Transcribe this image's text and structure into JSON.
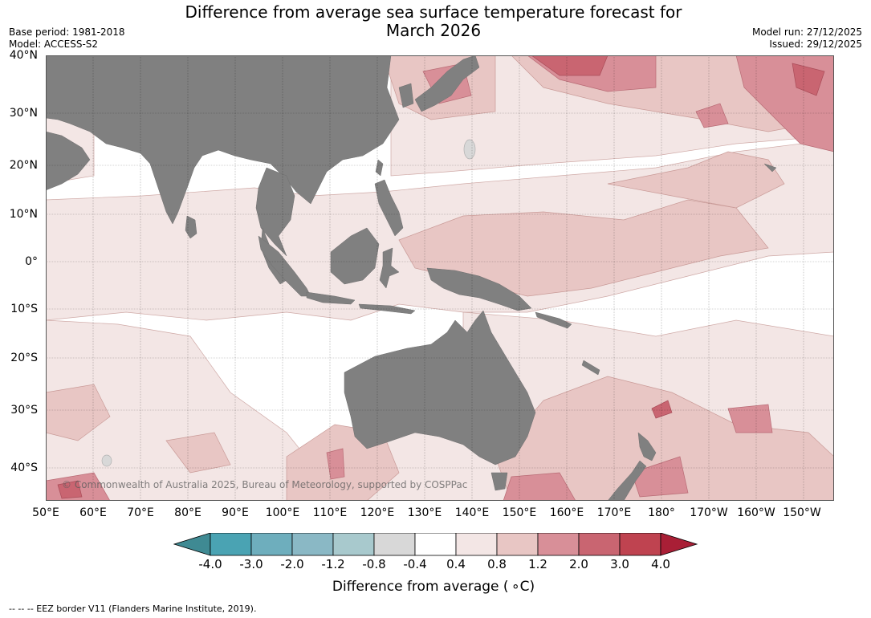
{
  "title": {
    "line1": "Difference from average sea surface temperature forecast for",
    "line2": "March 2026"
  },
  "meta": {
    "base_period": "Base period: 1981-2018",
    "model": "Model: ACCESS-S2",
    "model_run": "Model run: 27/12/2025",
    "issued": "Issued: 29/12/2025"
  },
  "axes": {
    "lat_labels": [
      "40°N",
      "30°N",
      "20°N",
      "10°N",
      "0°",
      "10°S",
      "20°S",
      "30°S",
      "40°S"
    ],
    "lon_labels": [
      "50°E",
      "60°E",
      "70°E",
      "80°E",
      "90°E",
      "100°E",
      "110°E",
      "120°E",
      "130°E",
      "140°E",
      "150°E",
      "160°E",
      "170°E",
      "180°",
      "170°W",
      "160°W",
      "150°W"
    ]
  },
  "colorbar": {
    "ticks": [
      "-4.0",
      "-3.0",
      "-2.0",
      "-1.2",
      "-0.8",
      "-0.4",
      "0.4",
      "0.8",
      "1.2",
      "2.0",
      "3.0",
      "4.0"
    ],
    "colors": [
      "#3f8a93",
      "#4aa3b3",
      "#6eaebd",
      "#8ab8c5",
      "#a8c9cd",
      "#d8d8d8",
      "#ffffff",
      "#f3e6e5",
      "#e8c6c4",
      "#d88f98",
      "#c96571",
      "#bf4350",
      "#a91f36"
    ],
    "title": "Difference from average ( ∘C)"
  },
  "copyright": "© Commonwealth of Australia 2025, Bureau of Meteorology, supported by COSPPac",
  "footnote": "--  --  -- EEZ border V11 (Flanders Marine Institute, 2019)."
}
